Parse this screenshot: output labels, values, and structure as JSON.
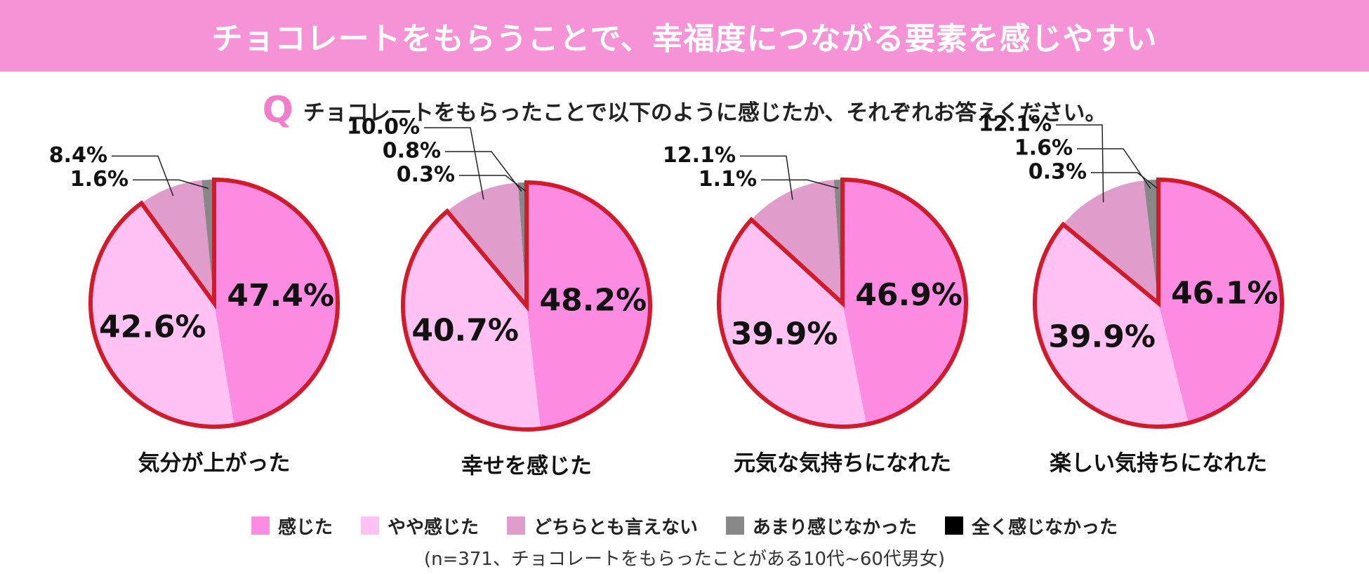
{
  "header": {
    "title": "チョコレートをもらうことで、幸福度につながる要素を感じやすい"
  },
  "question": {
    "mark": "Q",
    "text": "チョコレートをもらったことで以下のように感じたか、それぞれお答えください。"
  },
  "colors": {
    "banner": "#f693d6",
    "q_mark": "#f07ecb",
    "highlight_outline": "#d11b2a"
  },
  "chart_data": [
    {
      "type": "pie",
      "title": "気分が上がった",
      "categories": [
        "感じた",
        "やや感じた",
        "どちらとも言えない",
        "あまり感じなかった",
        "全く感じなかった"
      ],
      "values": [
        47.4,
        42.6,
        8.4,
        1.6,
        0
      ],
      "labels": [
        "47.4%",
        "42.6%",
        "8.4%",
        "1.6%",
        ""
      ]
    },
    {
      "type": "pie",
      "title": "幸せを感じた",
      "categories": [
        "感じた",
        "やや感じた",
        "どちらとも言えない",
        "あまり感じなかった",
        "全く感じなかった"
      ],
      "values": [
        48.2,
        40.7,
        10.0,
        0.8,
        0.3
      ],
      "labels": [
        "48.2%",
        "40.7%",
        "10.0%",
        "0.8%",
        "0.3%"
      ]
    },
    {
      "type": "pie",
      "title": "元気な気持ちになれた",
      "categories": [
        "感じた",
        "やや感じた",
        "どちらとも言えない",
        "あまり感じなかった",
        "全く感じなかった"
      ],
      "values": [
        46.9,
        39.9,
        12.1,
        1.1,
        0
      ],
      "labels": [
        "46.9%",
        "39.9%",
        "12.1%",
        "1.1%",
        ""
      ]
    },
    {
      "type": "pie",
      "title": "楽しい気持ちになれた",
      "categories": [
        "感じた",
        "やや感じた",
        "どちらとも言えない",
        "あまり感じなかった",
        "全く感じなかった"
      ],
      "values": [
        46.1,
        39.9,
        12.1,
        1.6,
        0.3
      ],
      "labels": [
        "46.1%",
        "39.9%",
        "12.1%",
        "1.6%",
        "0.3%"
      ]
    }
  ],
  "legend": [
    {
      "label": "感じた",
      "color": "#fc8ce2"
    },
    {
      "label": "やや感じた",
      "color": "#ffc2f2"
    },
    {
      "label": "どちらとも言えない",
      "color": "#e09ccb"
    },
    {
      "label": "あまり感じなかった",
      "color": "#888888"
    },
    {
      "label": "全く感じなかった",
      "color": "#000000"
    }
  ],
  "note": "(n=371、チョコレートをもらったことがある10代~60代男女)"
}
